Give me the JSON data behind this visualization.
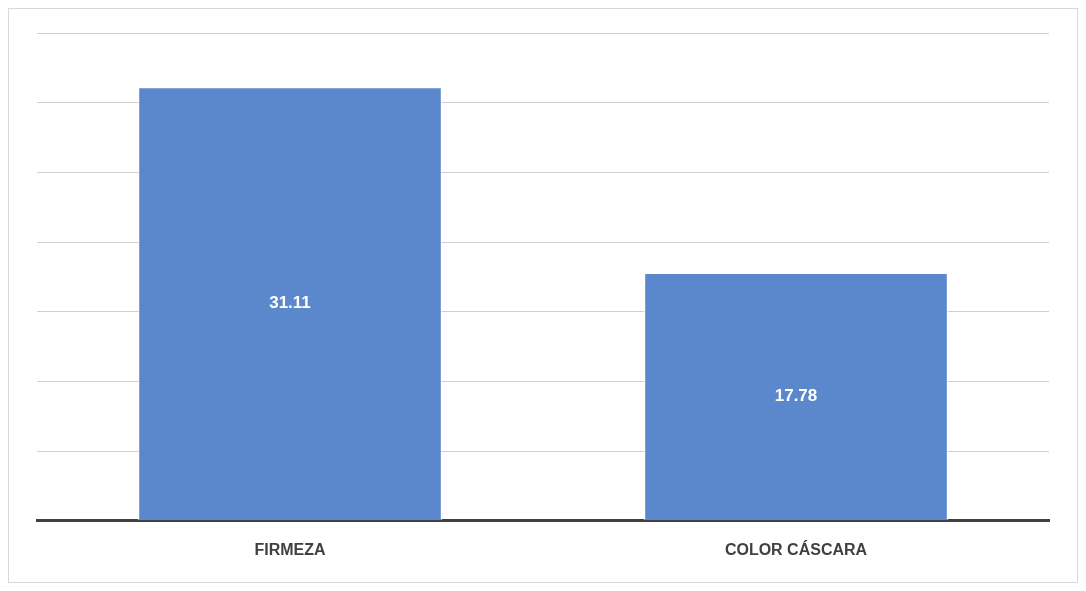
{
  "chart_data": {
    "type": "bar",
    "categories": [
      "FIRMEZA",
      "COLOR CÁSCARA"
    ],
    "values": [
      31.11,
      17.78
    ],
    "color": "#5b87cd",
    "ylim": [
      0,
      35
    ],
    "yticks": [
      {
        "value": 0,
        "label": null
      },
      {
        "value": 5,
        "label": null
      },
      {
        "value": 10,
        "label": null
      },
      {
        "value": 15,
        "label": null
      },
      {
        "value": 20,
        "label": null
      },
      {
        "value": 25,
        "label": null
      },
      {
        "value": 30,
        "label": null
      },
      {
        "value": 35,
        "label": null
      }
    ],
    "tick_labels": "x",
    "grid": "y",
    "data_labels": true
  }
}
